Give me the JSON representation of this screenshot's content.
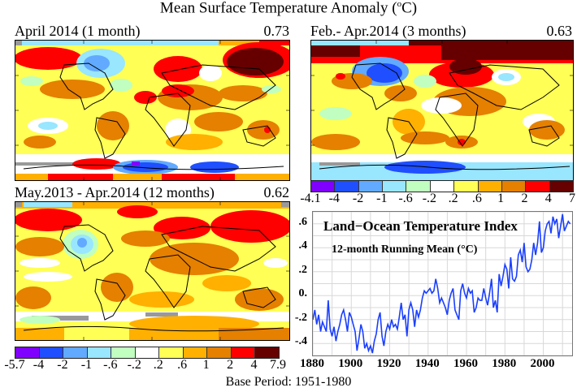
{
  "title": "Mean Surface Temperature Anomaly (°C)",
  "title_parts": {
    "prefix": "Mean Surface Temperature Anomaly (",
    "sup": "o",
    "suffix": "C)"
  },
  "panels": [
    {
      "id": "april-2014",
      "label": "April 2014 (1 month)",
      "value": "0.73"
    },
    {
      "id": "feb-apr-2014",
      "label": "Feb.- Apr.2014 (3 months)",
      "value": "0.63"
    },
    {
      "id": "may2013-apr2014",
      "label": "May.2013 - Apr.2014 (12 months)",
      "value": "0.62"
    }
  ],
  "colorbars": [
    {
      "id": "colorbar-3month",
      "ticks": [
        "-4.1",
        "-4",
        "-2",
        "-1",
        "-.6",
        "-.2",
        ".2",
        ".6",
        "1",
        "2",
        "4",
        "7"
      ]
    },
    {
      "id": "colorbar-12month",
      "ticks": [
        "-5.7",
        "-4",
        "-2",
        "-1",
        "-.6",
        "-.2",
        ".2",
        ".6",
        "1",
        "2",
        "4",
        "7.9"
      ]
    }
  ],
  "colorbar_colors": [
    "#8000ff",
    "#1f4fff",
    "#61aaff",
    "#99e6ff",
    "#c0ffc0",
    "#ffffff",
    "#ffff55",
    "#ffb000",
    "#e58000",
    "#ff0000",
    "#660000"
  ],
  "base_period": "Base Period: 1951-1980",
  "chart_data": {
    "type": "line",
    "title": "Land−Ocean Temperature Index",
    "subtitle": "12-month Running Mean (°C)",
    "xlabel": "",
    "ylabel": "",
    "xlim": [
      1880,
      2015
    ],
    "ylim": [
      -0.5,
      0.7
    ],
    "grid": true,
    "x_ticks": [
      "1880",
      "1900",
      "1920",
      "1940",
      "1960",
      "1980",
      "2000"
    ],
    "y_ticks": [
      ".6",
      ".4",
      ".2",
      "0.",
      "-.2",
      "-.4"
    ],
    "y_tick_values": [
      0.6,
      0.4,
      0.2,
      0.0,
      -0.2,
      -0.4
    ],
    "series": [
      {
        "name": "12-month running mean",
        "color": "#1a3fff",
        "x": [
          1880,
          1881,
          1882,
          1883,
          1884,
          1885,
          1886,
          1887,
          1888,
          1889,
          1890,
          1891,
          1892,
          1893,
          1894,
          1895,
          1896,
          1897,
          1898,
          1899,
          1900,
          1901,
          1902,
          1903,
          1904,
          1905,
          1906,
          1907,
          1908,
          1909,
          1910,
          1911,
          1912,
          1913,
          1914,
          1915,
          1916,
          1917,
          1918,
          1919,
          1920,
          1921,
          1922,
          1923,
          1924,
          1925,
          1926,
          1927,
          1928,
          1929,
          1930,
          1931,
          1932,
          1933,
          1934,
          1935,
          1936,
          1937,
          1938,
          1939,
          1940,
          1941,
          1942,
          1943,
          1944,
          1945,
          1946,
          1947,
          1948,
          1949,
          1950,
          1951,
          1952,
          1953,
          1954,
          1955,
          1956,
          1957,
          1958,
          1959,
          1960,
          1961,
          1962,
          1963,
          1964,
          1965,
          1966,
          1967,
          1968,
          1969,
          1970,
          1971,
          1972,
          1973,
          1974,
          1975,
          1976,
          1977,
          1978,
          1979,
          1980,
          1981,
          1982,
          1983,
          1984,
          1985,
          1986,
          1987,
          1988,
          1989,
          1990,
          1991,
          1992,
          1993,
          1994,
          1995,
          1996,
          1997,
          1998,
          1999,
          2000,
          2001,
          2002,
          2003,
          2004,
          2005,
          2006,
          2007,
          2008,
          2009,
          2010,
          2011,
          2012,
          2013,
          2014
        ],
        "y": [
          -0.2,
          -0.12,
          -0.24,
          -0.16,
          -0.3,
          -0.22,
          -0.26,
          -0.3,
          -0.04,
          -0.28,
          -0.34,
          -0.26,
          -0.38,
          -0.3,
          -0.24,
          -0.16,
          -0.12,
          -0.2,
          -0.3,
          -0.14,
          -0.18,
          -0.24,
          -0.3,
          -0.46,
          -0.36,
          -0.24,
          -0.3,
          -0.44,
          -0.4,
          -0.46,
          -0.42,
          -0.48,
          -0.38,
          -0.32,
          -0.2,
          -0.14,
          -0.34,
          -0.42,
          -0.3,
          -0.24,
          -0.28,
          -0.2,
          -0.26,
          -0.24,
          -0.28,
          -0.18,
          -0.06,
          -0.2,
          -0.16,
          -0.34,
          -0.12,
          -0.06,
          -0.12,
          -0.26,
          -0.12,
          -0.18,
          -0.12,
          -0.02,
          0.04,
          0.02,
          0.04,
          0.06,
          0.02,
          0.04,
          0.14,
          0.06,
          -0.06,
          -0.02,
          -0.06,
          -0.1,
          -0.16,
          -0.04,
          0.02,
          0.06,
          -0.12,
          -0.16,
          -0.2,
          0.04,
          0.1,
          0.02,
          -0.02,
          0.06,
          0.02,
          0.04,
          -0.14,
          -0.1,
          -0.02,
          -0.04,
          -0.04,
          0.06,
          -0.02,
          -0.08,
          0.02,
          0.14,
          -0.1,
          -0.04,
          -0.14,
          0.18,
          0.08,
          0.16,
          0.26,
          0.22,
          0.06,
          0.32,
          0.14,
          0.12,
          0.16,
          0.34,
          0.38,
          0.28,
          0.44,
          0.24,
          0.2,
          0.22,
          0.3,
          0.44,
          0.34,
          0.44,
          0.62,
          0.36,
          0.4,
          0.54,
          0.6,
          0.62,
          0.52,
          0.66,
          0.6,
          0.64,
          0.48,
          0.58,
          0.68,
          0.54,
          0.58,
          0.62,
          0.6
        ]
      }
    ]
  }
}
